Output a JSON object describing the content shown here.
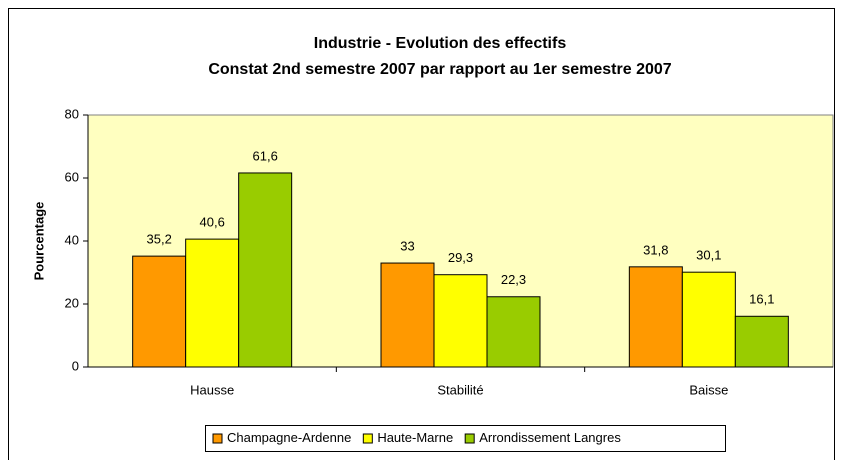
{
  "chart_data": {
    "type": "bar",
    "title": [
      "Industrie - Evolution des effectifs",
      "Constat 2nd semestre 2007 par rapport au 1er semestre 2007"
    ],
    "y_label": "Pourcentage",
    "categories": [
      "Hausse",
      "Stabilité",
      "Baisse"
    ],
    "series": [
      {
        "name": "Champagne-Ardenne",
        "color": "#ff9900",
        "values": [
          35.2,
          33,
          31.8
        ],
        "value_labels": [
          "35,2",
          "33",
          "31,8"
        ]
      },
      {
        "name": "Haute-Marne",
        "color": "#ffff00",
        "values": [
          40.6,
          29.3,
          30.1
        ],
        "value_labels": [
          "40,6",
          "29,3",
          "30,1"
        ]
      },
      {
        "name": "Arrondissement Langres",
        "color": "#99cc00",
        "values": [
          61.6,
          22.3,
          16.1
        ],
        "value_labels": [
          "61,6",
          "22,3",
          "16,1"
        ]
      }
    ],
    "ylim": [
      0,
      80
    ],
    "yticks": [
      0,
      20,
      40,
      60,
      80
    ],
    "grid": false,
    "legend": "bottom"
  }
}
